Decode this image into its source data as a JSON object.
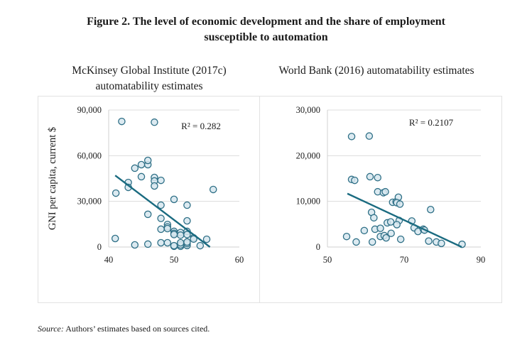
{
  "figure": {
    "title_line1": "Figure 2. The level of economic development and the share of employment",
    "title_line2": "susceptible to automation",
    "source_label": "Source:",
    "source_text": " Authors’ estimates based on sources cited."
  },
  "panels": {
    "left": {
      "title_line1": "McKinsey Global Institute (2017c)",
      "title_line2": "automatability estimates"
    },
    "right": {
      "title_line1": "World Bank (2016) automatability estimates"
    }
  },
  "chart_data": [
    {
      "type": "scatter",
      "title": "McKinsey Global Institute (2017c) automatability estimates",
      "xlabel": "",
      "ylabel": "GNI per capita, current $",
      "xlim": [
        40,
        60
      ],
      "ylim": [
        0,
        90000
      ],
      "xticks": [
        40,
        50,
        60
      ],
      "xtick_labels": [
        "40",
        "50",
        "60"
      ],
      "yticks": [
        0,
        30000,
        60000,
        90000
      ],
      "ytick_labels": [
        "0",
        "30,000",
        "60,000",
        "90,000"
      ],
      "grid": "horizontal",
      "annotation": "R² = 0.282",
      "trendline": {
        "x": [
          41,
          55.5
        ],
        "y": [
          47000,
          0
        ]
      },
      "points": [
        {
          "x": 41.1,
          "y": 35400
        },
        {
          "x": 42,
          "y": 82500
        },
        {
          "x": 43,
          "y": 42400
        },
        {
          "x": 43,
          "y": 39200
        },
        {
          "x": 44,
          "y": 51800
        },
        {
          "x": 45,
          "y": 54100
        },
        {
          "x": 46,
          "y": 54100
        },
        {
          "x": 46,
          "y": 56900
        },
        {
          "x": 45,
          "y": 46200
        },
        {
          "x": 47,
          "y": 82000
        },
        {
          "x": 47,
          "y": 45700
        },
        {
          "x": 47,
          "y": 43400
        },
        {
          "x": 47,
          "y": 40100
        },
        {
          "x": 48,
          "y": 43800
        },
        {
          "x": 50,
          "y": 31300
        },
        {
          "x": 48,
          "y": 27500
        },
        {
          "x": 52,
          "y": 27500
        },
        {
          "x": 46,
          "y": 21500
        },
        {
          "x": 48,
          "y": 18800
        },
        {
          "x": 52,
          "y": 17200
        },
        {
          "x": 49,
          "y": 14800
        },
        {
          "x": 49,
          "y": 13200
        },
        {
          "x": 49,
          "y": 12100
        },
        {
          "x": 48,
          "y": 11700
        },
        {
          "x": 50,
          "y": 10300
        },
        {
          "x": 50,
          "y": 9000
        },
        {
          "x": 50,
          "y": 8200
        },
        {
          "x": 51,
          "y": 9500
        },
        {
          "x": 51,
          "y": 7800
        },
        {
          "x": 52,
          "y": 10300
        },
        {
          "x": 52,
          "y": 8200
        },
        {
          "x": 53,
          "y": 6000
        },
        {
          "x": 53,
          "y": 5200
        },
        {
          "x": 55,
          "y": 5100
        },
        {
          "x": 41,
          "y": 5600
        },
        {
          "x": 44,
          "y": 1400
        },
        {
          "x": 46,
          "y": 1900
        },
        {
          "x": 48,
          "y": 2800
        },
        {
          "x": 49,
          "y": 2800
        },
        {
          "x": 50,
          "y": 500
        },
        {
          "x": 50,
          "y": 900
        },
        {
          "x": 51,
          "y": 500
        },
        {
          "x": 51,
          "y": 1400
        },
        {
          "x": 51,
          "y": 2800
        },
        {
          "x": 52,
          "y": 1000
        },
        {
          "x": 52,
          "y": 2300
        },
        {
          "x": 52,
          "y": 3300
        },
        {
          "x": 54,
          "y": 900
        },
        {
          "x": 56,
          "y": 37800
        }
      ]
    },
    {
      "type": "scatter",
      "title": "World Bank (2016) automatability estimates",
      "xlabel": "",
      "ylabel": "",
      "xlim": [
        50,
        90
      ],
      "ylim": [
        0,
        30000
      ],
      "xticks": [
        50,
        70,
        90
      ],
      "xtick_labels": [
        "50",
        "70",
        "90"
      ],
      "yticks": [
        0,
        10000,
        20000,
        30000
      ],
      "ytick_labels": [
        "0",
        "10,000",
        "20,000",
        "30,000"
      ],
      "grid": "horizontal",
      "annotation": "R² = 0.2107",
      "trendline": {
        "x": [
          55.2,
          85
        ],
        "y": [
          11700,
          0
        ]
      },
      "points": [
        {
          "x": 56.3,
          "y": 24200
        },
        {
          "x": 60.9,
          "y": 24300
        },
        {
          "x": 56.3,
          "y": 14800
        },
        {
          "x": 57.1,
          "y": 14600
        },
        {
          "x": 61.1,
          "y": 15400
        },
        {
          "x": 63.1,
          "y": 15200
        },
        {
          "x": 63.1,
          "y": 12100
        },
        {
          "x": 64.6,
          "y": 11900
        },
        {
          "x": 65.1,
          "y": 12100
        },
        {
          "x": 67.0,
          "y": 9800
        },
        {
          "x": 67.9,
          "y": 9900
        },
        {
          "x": 68.5,
          "y": 10900
        },
        {
          "x": 68.1,
          "y": 9700
        },
        {
          "x": 68.9,
          "y": 9400
        },
        {
          "x": 76.9,
          "y": 8200
        },
        {
          "x": 61.5,
          "y": 7600
        },
        {
          "x": 62.1,
          "y": 6400
        },
        {
          "x": 65.6,
          "y": 5300
        },
        {
          "x": 66.5,
          "y": 5500
        },
        {
          "x": 68.7,
          "y": 5800
        },
        {
          "x": 68.1,
          "y": 4900
        },
        {
          "x": 72.0,
          "y": 5700
        },
        {
          "x": 72.6,
          "y": 4200
        },
        {
          "x": 73.6,
          "y": 3400
        },
        {
          "x": 75.0,
          "y": 3900
        },
        {
          "x": 75.3,
          "y": 3700
        },
        {
          "x": 55.0,
          "y": 2300
        },
        {
          "x": 57.5,
          "y": 1100
        },
        {
          "x": 61.7,
          "y": 1100
        },
        {
          "x": 59.6,
          "y": 3600
        },
        {
          "x": 62.4,
          "y": 3900
        },
        {
          "x": 63.8,
          "y": 4100
        },
        {
          "x": 63.8,
          "y": 2300
        },
        {
          "x": 64.8,
          "y": 2500
        },
        {
          "x": 65.3,
          "y": 2000
        },
        {
          "x": 66.6,
          "y": 3000
        },
        {
          "x": 69.1,
          "y": 1700
        },
        {
          "x": 76.4,
          "y": 1300
        },
        {
          "x": 78.4,
          "y": 1100
        },
        {
          "x": 79.7,
          "y": 800
        },
        {
          "x": 85.1,
          "y": 600
        }
      ]
    }
  ]
}
